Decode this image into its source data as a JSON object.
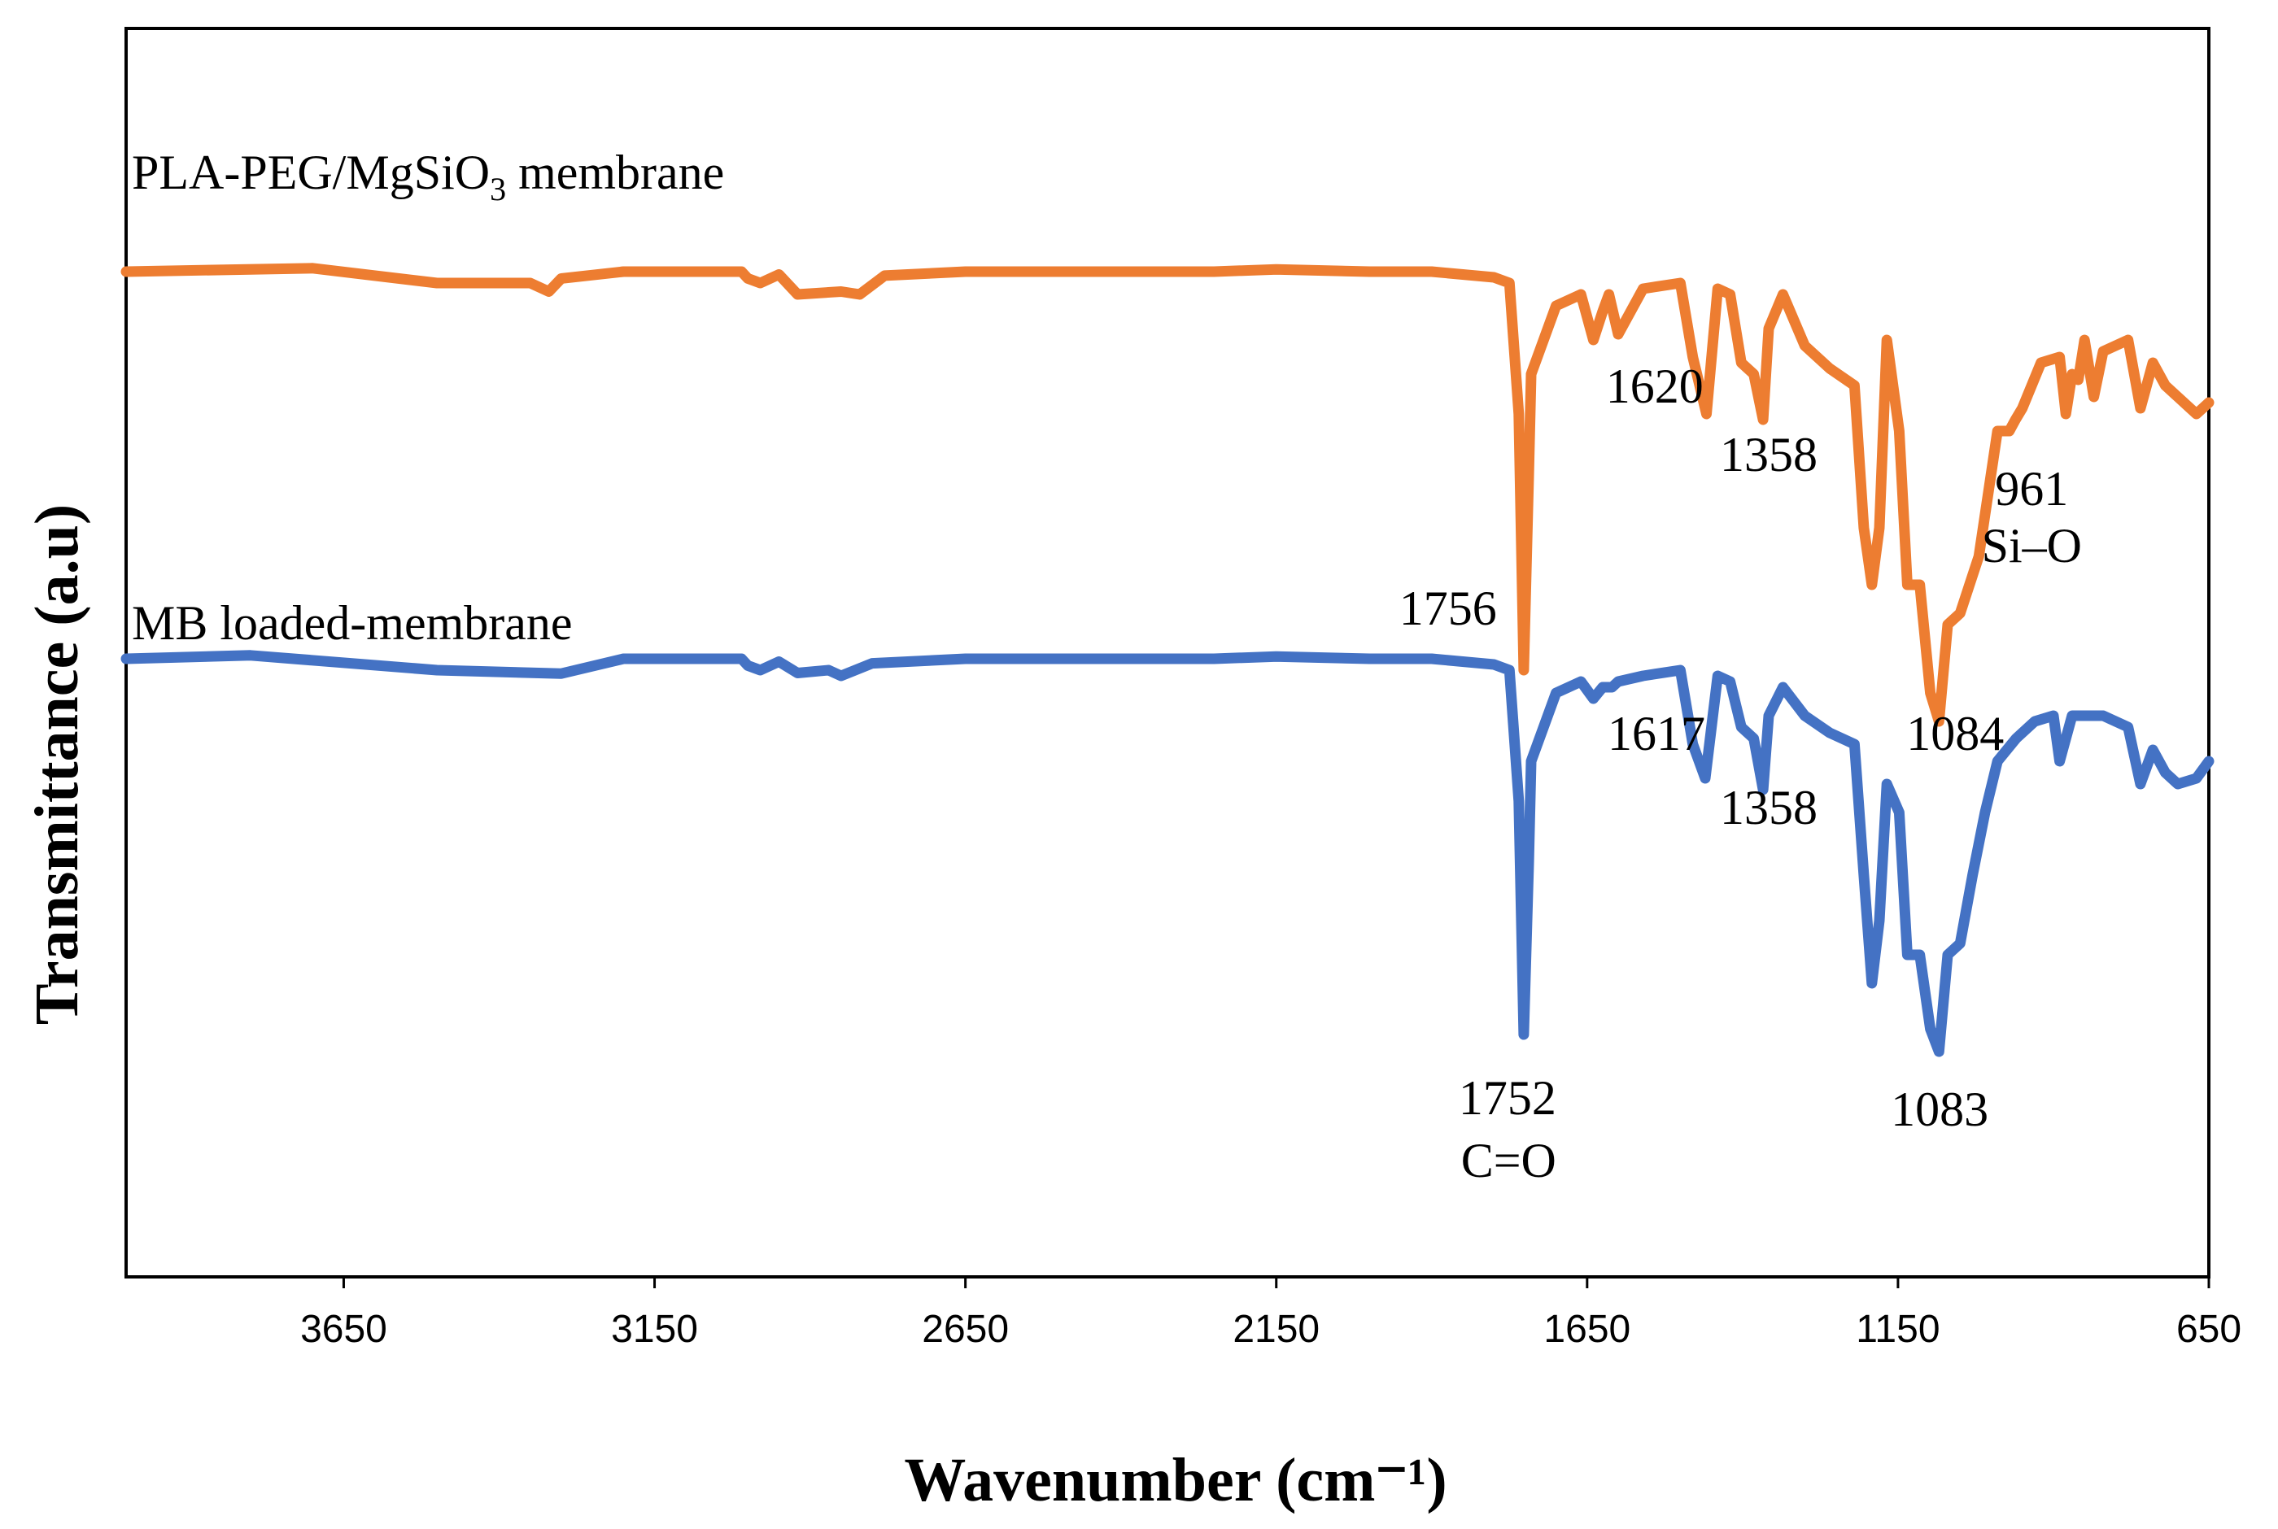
{
  "chart_data": {
    "type": "line",
    "title": "",
    "xlabel": "Wavenumber (cm⁻¹)",
    "ylabel": "Transmittance (a.u)",
    "xlim": [
      4000,
      650
    ],
    "ylim": [
      -100,
      100
    ],
    "x_reversed": true,
    "grid": false,
    "y_ticks_shown": false,
    "x_ticks": [
      3650,
      3150,
      2650,
      2150,
      1650,
      1150,
      650
    ],
    "x_tick_labels": [
      "3650",
      "3150",
      "2650",
      "2150",
      "1650",
      "1150",
      "650"
    ],
    "colors": {
      "orange": "#ED7D31",
      "blue": "#4472C4"
    },
    "series": [
      {
        "name": "PLA-PEG/MgSiO3 membrane",
        "label_main": "PLA-PEG/MgSiO",
        "label_sub": "3",
        "label_tail": " membrane",
        "color": "#ED7D31",
        "offset": 68,
        "points": [
          [
            4000,
            0
          ],
          [
            3700,
            0.6
          ],
          [
            3500,
            -2
          ],
          [
            3350,
            -2
          ],
          [
            3320,
            -3.5
          ],
          [
            3300,
            -1.2
          ],
          [
            3200,
            0
          ],
          [
            3010,
            0
          ],
          [
            3000,
            -1.2
          ],
          [
            2980,
            -2
          ],
          [
            2950,
            -0.5
          ],
          [
            2920,
            -4
          ],
          [
            2850,
            -3.5
          ],
          [
            2820,
            -4
          ],
          [
            2780,
            -0.7
          ],
          [
            2650,
            0
          ],
          [
            2500,
            0
          ],
          [
            2400,
            0
          ],
          [
            2250,
            0
          ],
          [
            2150,
            0.4
          ],
          [
            2000,
            0
          ],
          [
            1900,
            0
          ],
          [
            1800,
            -1
          ],
          [
            1775,
            -2
          ],
          [
            1760,
            -25
          ],
          [
            1752,
            -70
          ],
          [
            1744,
            -36
          ],
          [
            1740,
            -18
          ],
          [
            1700,
            -6
          ],
          [
            1660,
            -4
          ],
          [
            1640,
            -12
          ],
          [
            1625,
            -7
          ],
          [
            1615,
            -4
          ],
          [
            1600,
            -11
          ],
          [
            1560,
            -3
          ],
          [
            1500,
            -2
          ],
          [
            1480,
            -15
          ],
          [
            1458,
            -25
          ],
          [
            1440,
            -3
          ],
          [
            1420,
            -4
          ],
          [
            1402,
            -16
          ],
          [
            1382,
            -18
          ],
          [
            1367,
            -26
          ],
          [
            1358,
            -10
          ],
          [
            1335,
            -4
          ],
          [
            1300,
            -13
          ],
          [
            1260,
            -17
          ],
          [
            1220,
            -20
          ],
          [
            1205,
            -45
          ],
          [
            1192,
            -55
          ],
          [
            1180,
            -45
          ],
          [
            1168,
            -12
          ],
          [
            1148,
            -28
          ],
          [
            1135,
            -55
          ],
          [
            1115,
            -55
          ],
          [
            1098,
            -74
          ],
          [
            1084,
            -79
          ],
          [
            1070,
            -62
          ],
          [
            1050,
            -60
          ],
          [
            1020,
            -50
          ],
          [
            990,
            -28
          ],
          [
            971,
            -28
          ],
          [
            961,
            -26
          ],
          [
            950,
            -24
          ],
          [
            920,
            -16
          ],
          [
            890,
            -15
          ],
          [
            880,
            -25
          ],
          [
            870,
            -18
          ],
          [
            860,
            -19
          ],
          [
            850,
            -12
          ],
          [
            835,
            -22
          ],
          [
            820,
            -14
          ],
          [
            780,
            -12
          ],
          [
            760,
            -24
          ],
          [
            740,
            -16
          ],
          [
            720,
            -20
          ],
          [
            700,
            -22
          ],
          [
            670,
            -25
          ],
          [
            650,
            -23
          ]
        ]
      },
      {
        "name": "MB loaded-membrane",
        "label_main": "MB loaded-membrane",
        "label_sub": "",
        "label_tail": "",
        "color": "#4472C4",
        "offset": 0,
        "points": [
          [
            4000,
            0
          ],
          [
            3800,
            0.6
          ],
          [
            3500,
            -2
          ],
          [
            3300,
            -2.6
          ],
          [
            3200,
            0
          ],
          [
            3010,
            0
          ],
          [
            3000,
            -1.2
          ],
          [
            2980,
            -2
          ],
          [
            2950,
            -0.5
          ],
          [
            2920,
            -2.5
          ],
          [
            2870,
            -2
          ],
          [
            2850,
            -3
          ],
          [
            2800,
            -0.8
          ],
          [
            2650,
            0
          ],
          [
            2500,
            0
          ],
          [
            2400,
            0
          ],
          [
            2250,
            0
          ],
          [
            2150,
            0.4
          ],
          [
            2000,
            0
          ],
          [
            1900,
            0
          ],
          [
            1800,
            -1
          ],
          [
            1775,
            -2
          ],
          [
            1760,
            -25
          ],
          [
            1752,
            -66
          ],
          [
            1744,
            -36
          ],
          [
            1740,
            -18
          ],
          [
            1700,
            -6
          ],
          [
            1660,
            -4
          ],
          [
            1640,
            -7
          ],
          [
            1625,
            -5
          ],
          [
            1610,
            -5
          ],
          [
            1600,
            -4
          ],
          [
            1560,
            -3
          ],
          [
            1500,
            -2
          ],
          [
            1480,
            -15
          ],
          [
            1460,
            -21
          ],
          [
            1440,
            -3
          ],
          [
            1420,
            -4
          ],
          [
            1402,
            -12
          ],
          [
            1382,
            -14
          ],
          [
            1367,
            -23
          ],
          [
            1358,
            -10
          ],
          [
            1335,
            -5
          ],
          [
            1300,
            -10
          ],
          [
            1260,
            -13
          ],
          [
            1220,
            -15
          ],
          [
            1205,
            -38
          ],
          [
            1192,
            -57
          ],
          [
            1180,
            -46
          ],
          [
            1168,
            -22
          ],
          [
            1148,
            -27
          ],
          [
            1135,
            -52
          ],
          [
            1115,
            -52
          ],
          [
            1098,
            -65
          ],
          [
            1084,
            -69
          ],
          [
            1070,
            -52
          ],
          [
            1050,
            -50
          ],
          [
            1030,
            -38
          ],
          [
            1010,
            -27
          ],
          [
            990,
            -18
          ],
          [
            960,
            -14
          ],
          [
            930,
            -11
          ],
          [
            900,
            -10
          ],
          [
            890,
            -18
          ],
          [
            870,
            -10
          ],
          [
            820,
            -10
          ],
          [
            780,
            -12
          ],
          [
            760,
            -22
          ],
          [
            740,
            -16
          ],
          [
            720,
            -20
          ],
          [
            700,
            -22
          ],
          [
            670,
            -21
          ],
          [
            650,
            -18
          ]
        ]
      }
    ],
    "annotations": [
      {
        "text": "1620",
        "x": 1620,
        "y": 45,
        "align": "start",
        "dx": 0
      },
      {
        "text": "1358",
        "x": 1358,
        "y": 33,
        "align": "middle",
        "dx": 0
      },
      {
        "text": "961",
        "x": 961,
        "y": 27,
        "align": "middle",
        "dx": 20
      },
      {
        "text": "Si–O",
        "x": 961,
        "y": 17,
        "align": "middle",
        "dx": 20
      },
      {
        "text": "1756",
        "x": 1756,
        "y": 6,
        "align": "end",
        "dx": -30
      },
      {
        "text": "1617",
        "x": 1617,
        "y": -16,
        "align": "start",
        "dx": 0
      },
      {
        "text": "1084",
        "x": 1084,
        "y": -16,
        "align": "middle",
        "dx": 20
      },
      {
        "text": "1358",
        "x": 1358,
        "y": -29,
        "align": "middle",
        "dx": 0
      },
      {
        "text": "1752",
        "x": 1752,
        "y": -80,
        "align": "end",
        "dx": 40
      },
      {
        "text": "C=O",
        "x": 1752,
        "y": -91,
        "align": "end",
        "dx": 40
      },
      {
        "text": "1083",
        "x": 1083,
        "y": -82,
        "align": "middle",
        "dx": 0
      }
    ]
  }
}
